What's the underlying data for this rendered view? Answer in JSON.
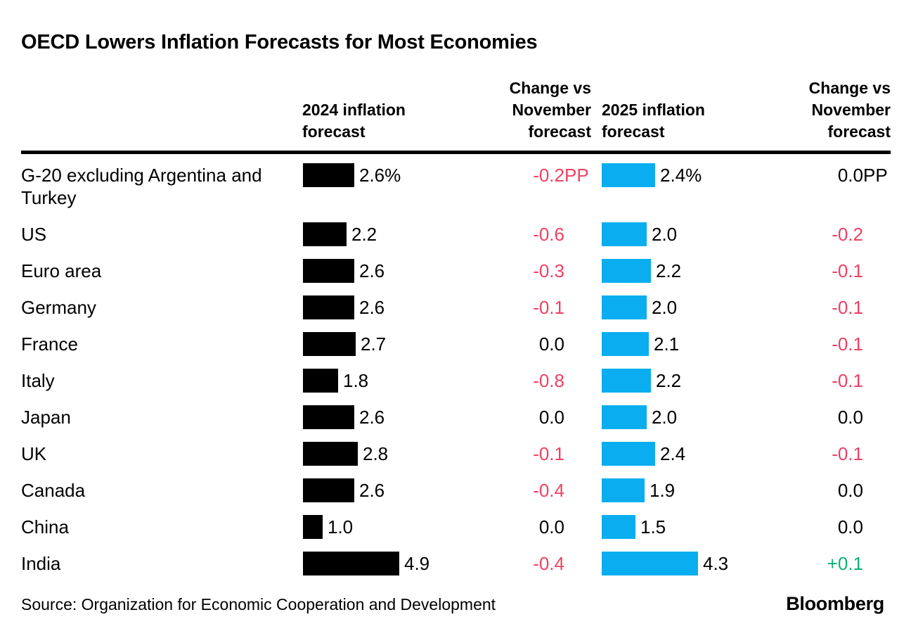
{
  "title": "OECD Lowers Inflation Forecasts for Most Economies",
  "headers": {
    "col_2024": "2024 inflation forecast",
    "col_change_2024": "Change vs November forecast",
    "col_2025": "2025 inflation forecast",
    "col_change_2025": "Change vs November forecast"
  },
  "footer": {
    "source": "Source: Organization for Economic Cooperation and Development",
    "brand": "Bloomberg"
  },
  "colors": {
    "bar_2024": "#000000",
    "bar_2025": "#0aaef0",
    "negative": "#ef4164",
    "positive": "#0bb273",
    "neutral": "#000000"
  },
  "chart_data": {
    "type": "bar",
    "orientation": "horizontal",
    "title": "OECD Lowers Inflation Forecasts for Most Economies",
    "categories": [
      "G-20 excluding Argentina and Turkey",
      "US",
      "Euro area",
      "Germany",
      "France",
      "Italy",
      "Japan",
      "UK",
      "Canada",
      "China",
      "India"
    ],
    "series": [
      {
        "name": "2024 inflation forecast",
        "unit": "%",
        "values": [
          2.6,
          2.2,
          2.6,
          2.6,
          2.7,
          1.8,
          2.6,
          2.8,
          2.6,
          1.0,
          4.9
        ]
      },
      {
        "name": "Change vs November forecast (2024)",
        "unit": "PP",
        "values": [
          -0.2,
          -0.6,
          -0.3,
          -0.1,
          0.0,
          -0.8,
          0.0,
          -0.1,
          -0.4,
          0.0,
          -0.4
        ]
      },
      {
        "name": "2025 inflation forecast",
        "unit": "%",
        "values": [
          2.4,
          2.0,
          2.2,
          2.0,
          2.1,
          2.2,
          2.0,
          2.4,
          1.9,
          1.5,
          4.3
        ]
      },
      {
        "name": "Change vs November forecast (2025)",
        "unit": "PP",
        "values": [
          0.0,
          -0.2,
          -0.1,
          -0.1,
          -0.1,
          -0.1,
          0.0,
          -0.1,
          0.0,
          0.0,
          0.1
        ]
      }
    ],
    "legend": "none",
    "grid": false,
    "units_shown_on_first_row_only": true,
    "source": "Source: Organization for Economic Cooperation and Development"
  }
}
